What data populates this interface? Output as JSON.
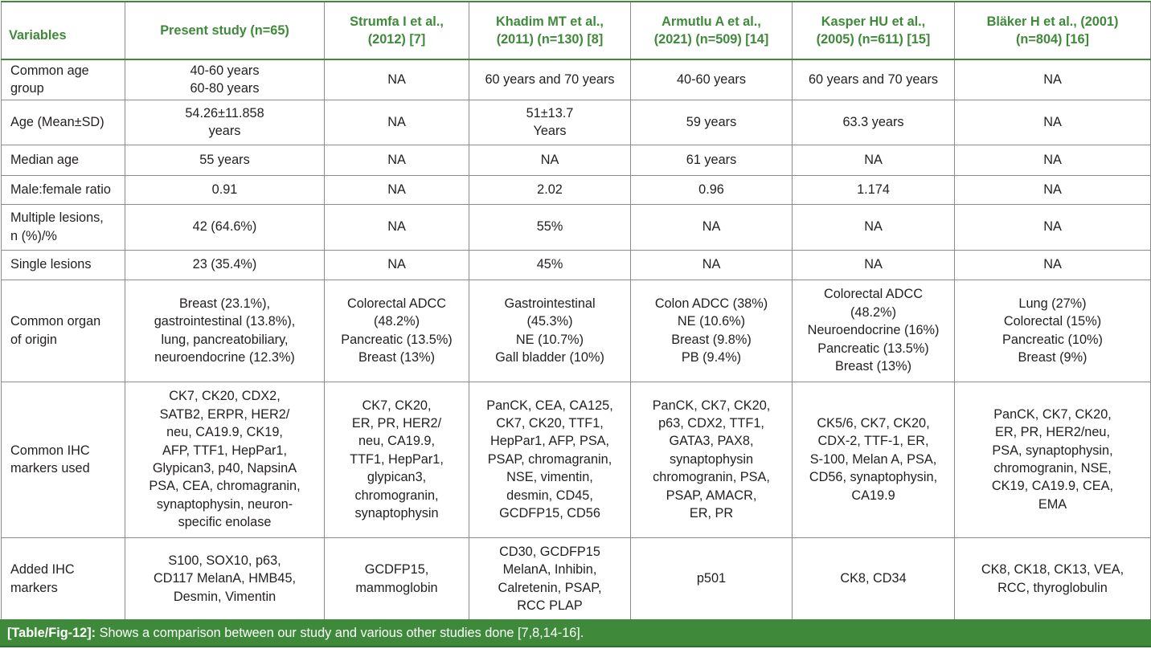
{
  "table": {
    "headers": [
      "Variables",
      "Present study (n=65)",
      "Strumfa I et al.,\n(2012) [7]",
      "Khadim MT et al.,\n(2011) (n=130) [8]",
      "Armutlu A et al.,\n(2021) (n=509) [14]",
      "Kasper HU et al.,\n(2005) (n=611) [15]",
      "Bläker H et al., (2001)\n(n=804) [16]"
    ],
    "rows": [
      {
        "label": "Common age\ngroup",
        "cells": [
          "40-60 years\n60-80 years",
          "NA",
          "60 years and 70 years",
          "40-60 years",
          "60 years and 70 years",
          "NA"
        ]
      },
      {
        "label": "Age (Mean±SD)",
        "cells": [
          "54.26±11.858\nyears",
          "NA",
          "51±13.7\nYears",
          "59 years",
          "63.3 years",
          "NA"
        ]
      },
      {
        "label": "Median age",
        "cells": [
          "55 years",
          "NA",
          "NA",
          "61 years",
          "NA",
          "NA"
        ]
      },
      {
        "label": "Male:female ratio",
        "cells": [
          "0.91",
          "NA",
          "2.02",
          "0.96",
          "1.174",
          "NA"
        ]
      },
      {
        "label": "Multiple lesions,\nn (%)/%",
        "cells": [
          "42 (64.6%)",
          "NA",
          "55%",
          "NA",
          "NA",
          "NA"
        ]
      },
      {
        "label": "Single lesions",
        "cells": [
          "23 (35.4%)",
          "NA",
          "45%",
          "NA",
          "NA",
          "NA"
        ]
      },
      {
        "label": "Common organ\nof origin",
        "cells": [
          "Breast (23.1%),\ngastrointestinal (13.8%),\nlung, pancreatobiliary,\nneuroendocrine (12.3%)",
          "Colorectal ADCC\n(48.2%)\nPancreatic (13.5%)\nBreast (13%)",
          "Gastrointestinal\n(45.3%)\nNE (10.7%)\nGall bladder (10%)",
          "Colon ADCC (38%)\nNE (10.6%)\nBreast (9.8%)\nPB (9.4%)",
          "Colorectal ADCC\n(48.2%)\nNeuroendocrine (16%)\nPancreatic (13.5%)\nBreast (13%)",
          "Lung (27%)\nColorectal (15%)\nPancreatic (10%)\nBreast (9%)"
        ]
      },
      {
        "label": "Common IHC\nmarkers used",
        "cells": [
          "CK7, CK20, CDX2,\nSATB2, ERPR, HER2/\nneu, CA19.9, CK19,\nAFP, TTF1, HepPar1,\nGlypican3, p40, NapsinA\nPSA, CEA, chromagranin,\nsynaptophysin, neuron-\nspecific enolase",
          "CK7, CK20,\nER, PR, HER2/\nneu, CA19.9,\nTTF1, HepPar1,\nglypican3,\nchromogranin,\nsynaptophysin",
          "PanCK, CEA, CA125,\nCK7, CK20, TTF1,\nHepPar1, AFP, PSA,\nPSAP, chromagranin,\nNSE, vimentin,\ndesmin, CD45,\nGCDFP15, CD56",
          "PanCK, CK7, CK20,\np63, CDX2, TTF1,\nGATA3, PAX8,\nsynaptophysin\nchromogranin, PSA,\nPSAP, AMACR,\nER, PR",
          "CK5/6, CK7, CK20,\nCDX-2, TTF-1, ER,\nS-100, Melan A, PSA,\nCD56, synaptophysin,\nCA19.9",
          "PanCK, CK7, CK20,\nER, PR, HER2/neu,\nPSA, synaptophysin,\nchromogranin, NSE,\nCK19, CA19.9, CEA,\nEMA"
        ]
      },
      {
        "label": "Added IHC\nmarkers",
        "cells": [
          "S100, SOX10, p63,\nCD117 MelanA, HMB45,\nDesmin, Vimentin",
          "GCDFP15,\nmammoglobin",
          "CD30, GCDFP15\nMelanA, Inhibin,\nCalretenin, PSAP,\nRCC PLAP",
          "p501",
          "CK8, CD34",
          "CK8, CK18, CK13, VEA,\nRCC, thyroglobulin"
        ]
      }
    ]
  },
  "caption": {
    "tag": "[Table/Fig-12]:",
    "text": " Shows a comparison between our study and various other studies done [7,8,14-16]."
  }
}
